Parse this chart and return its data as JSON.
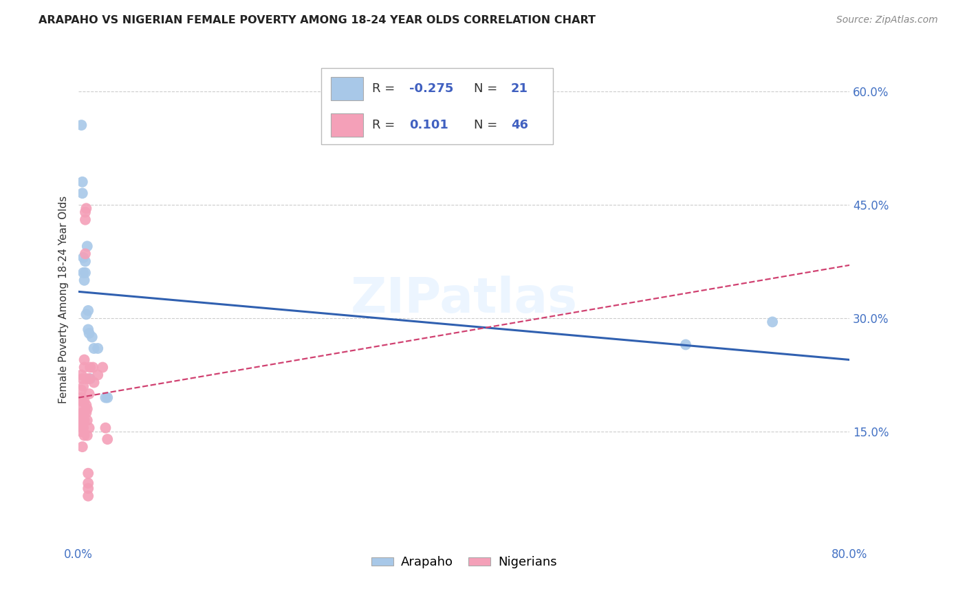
{
  "title": "ARAPAHO VS NIGERIAN FEMALE POVERTY AMONG 18-24 YEAR OLDS CORRELATION CHART",
  "source": "Source: ZipAtlas.com",
  "ylabel": "Female Poverty Among 18-24 Year Olds",
  "xlim": [
    0,
    0.8
  ],
  "ylim": [
    0,
    0.65
  ],
  "ytick_positions": [
    0.15,
    0.3,
    0.45,
    0.6
  ],
  "ytick_labels": [
    "15.0%",
    "30.0%",
    "45.0%",
    "60.0%"
  ],
  "arapaho_color": "#a8c8e8",
  "nigerian_color": "#f4a0b8",
  "arapaho_line_color": "#3060b0",
  "nigerian_line_color": "#d04070",
  "watermark": "ZIPatlas",
  "arapaho_line": [
    0.0,
    0.335,
    0.8,
    0.245
  ],
  "nigerian_line": [
    0.0,
    0.195,
    0.8,
    0.37
  ],
  "arapaho_points": [
    [
      0.003,
      0.555
    ],
    [
      0.004,
      0.48
    ],
    [
      0.004,
      0.465
    ],
    [
      0.005,
      0.38
    ],
    [
      0.005,
      0.36
    ],
    [
      0.006,
      0.35
    ],
    [
      0.007,
      0.375
    ],
    [
      0.007,
      0.36
    ],
    [
      0.008,
      0.305
    ],
    [
      0.009,
      0.395
    ],
    [
      0.01,
      0.31
    ],
    [
      0.01,
      0.285
    ],
    [
      0.011,
      0.28
    ],
    [
      0.012,
      0.22
    ],
    [
      0.014,
      0.275
    ],
    [
      0.016,
      0.26
    ],
    [
      0.02,
      0.26
    ],
    [
      0.028,
      0.195
    ],
    [
      0.03,
      0.195
    ],
    [
      0.63,
      0.265
    ],
    [
      0.72,
      0.295
    ]
  ],
  "nigerian_points": [
    [
      0.003,
      0.225
    ],
    [
      0.003,
      0.205
    ],
    [
      0.003,
      0.195
    ],
    [
      0.003,
      0.185
    ],
    [
      0.003,
      0.17
    ],
    [
      0.003,
      0.16
    ],
    [
      0.003,
      0.15
    ],
    [
      0.004,
      0.22
    ],
    [
      0.004,
      0.19
    ],
    [
      0.004,
      0.175
    ],
    [
      0.004,
      0.165
    ],
    [
      0.004,
      0.155
    ],
    [
      0.004,
      0.13
    ],
    [
      0.005,
      0.21
    ],
    [
      0.005,
      0.175
    ],
    [
      0.005,
      0.155
    ],
    [
      0.006,
      0.245
    ],
    [
      0.006,
      0.235
    ],
    [
      0.006,
      0.19
    ],
    [
      0.006,
      0.175
    ],
    [
      0.006,
      0.165
    ],
    [
      0.006,
      0.145
    ],
    [
      0.007,
      0.44
    ],
    [
      0.007,
      0.43
    ],
    [
      0.007,
      0.385
    ],
    [
      0.008,
      0.445
    ],
    [
      0.008,
      0.22
    ],
    [
      0.008,
      0.185
    ],
    [
      0.008,
      0.175
    ],
    [
      0.009,
      0.18
    ],
    [
      0.009,
      0.165
    ],
    [
      0.009,
      0.145
    ],
    [
      0.01,
      0.095
    ],
    [
      0.01,
      0.082
    ],
    [
      0.01,
      0.075
    ],
    [
      0.01,
      0.065
    ],
    [
      0.011,
      0.22
    ],
    [
      0.011,
      0.2
    ],
    [
      0.011,
      0.155
    ],
    [
      0.012,
      0.235
    ],
    [
      0.015,
      0.235
    ],
    [
      0.016,
      0.215
    ],
    [
      0.02,
      0.225
    ],
    [
      0.025,
      0.235
    ],
    [
      0.028,
      0.155
    ],
    [
      0.03,
      0.14
    ]
  ]
}
